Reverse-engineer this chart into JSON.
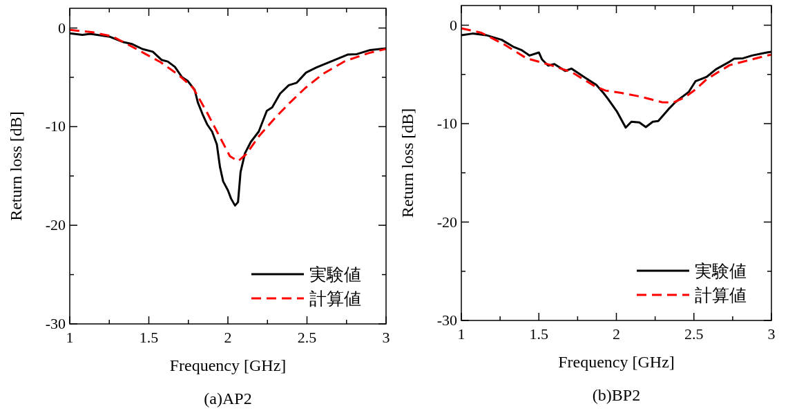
{
  "chart_data": [
    {
      "type": "line",
      "title": "(a)AP2",
      "xlabel": "Frequency [GHz]",
      "ylabel": "Return loss [dB]",
      "xlim": [
        1,
        3
      ],
      "ylim": [
        -30,
        2
      ],
      "xticks": [
        1,
        {
          "value": 1.25,
          "label": null
        },
        1.5,
        {
          "value": 1.75,
          "label": null
        },
        2,
        {
          "value": 2.25,
          "label": null
        },
        2.5,
        {
          "value": 2.75,
          "label": null
        },
        3
      ],
      "yticks": [
        -30,
        {
          "value": -25,
          "label": null
        },
        -20,
        {
          "value": -15,
          "label": null
        },
        -10,
        {
          "value": -5,
          "label": null
        },
        0
      ],
      "grid": false,
      "legend": "bottom right",
      "series": [
        {
          "name": "実験値",
          "color": "#000000",
          "line_style": "solid",
          "x": [
            1.0,
            1.08,
            1.13,
            1.255,
            1.34,
            1.39,
            1.46,
            1.525,
            1.58,
            1.62,
            1.665,
            1.71,
            1.745,
            1.79,
            1.81,
            1.84,
            1.87,
            1.9,
            1.93,
            1.95,
            1.97,
            2.0,
            2.02,
            2.045,
            2.064,
            2.08,
            2.108,
            2.145,
            2.195,
            2.246,
            2.28,
            2.33,
            2.385,
            2.435,
            2.494,
            2.56,
            2.64,
            2.757,
            2.815,
            2.9,
            3.0
          ],
          "values": [
            -0.54,
            -0.7,
            -0.59,
            -0.89,
            -1.43,
            -1.6,
            -2.13,
            -2.4,
            -3.23,
            -3.4,
            -3.94,
            -4.99,
            -5.35,
            -6.28,
            -7.55,
            -8.75,
            -9.8,
            -10.5,
            -11.8,
            -14.1,
            -15.55,
            -16.45,
            -17.3,
            -18.0,
            -17.65,
            -14.6,
            -12.7,
            -11.55,
            -10.5,
            -8.4,
            -8.05,
            -6.65,
            -5.8,
            -5.55,
            -4.52,
            -4.0,
            -3.47,
            -2.7,
            -2.65,
            -2.23,
            -2.06
          ]
        },
        {
          "name": "計算値",
          "color": "#ff0000",
          "line_style": "dashed",
          "x": [
            1.0,
            1.14,
            1.27,
            1.415,
            1.576,
            1.69,
            1.78,
            1.867,
            1.94,
            2.013,
            2.064,
            2.115,
            2.2,
            2.305,
            2.39,
            2.49,
            2.6,
            2.74,
            2.89,
            3.0
          ],
          "values": [
            -0.19,
            -0.42,
            -0.85,
            -2.07,
            -3.48,
            -4.78,
            -6.07,
            -8.54,
            -10.78,
            -13.0,
            -13.5,
            -12.8,
            -10.9,
            -9.0,
            -7.6,
            -6.07,
            -4.66,
            -3.36,
            -2.54,
            -2.12
          ]
        }
      ]
    },
    {
      "type": "line",
      "title": "(b)BP2",
      "xlabel": "Frequency [GHz]",
      "ylabel": "Return loss [dB]",
      "xlim": [
        1,
        3
      ],
      "ylim": [
        -30,
        2
      ],
      "xticks": [
        1,
        {
          "value": 1.25,
          "label": null
        },
        1.5,
        {
          "value": 1.75,
          "label": null
        },
        2,
        {
          "value": 2.25,
          "label": null
        },
        2.5,
        {
          "value": 2.75,
          "label": null
        },
        3
      ],
      "yticks": [
        -30,
        {
          "value": -25,
          "label": null
        },
        -20,
        {
          "value": -15,
          "label": null
        },
        -10,
        {
          "value": -5,
          "label": null
        },
        0
      ],
      "grid": false,
      "legend": "bottom right",
      "series": [
        {
          "name": "実験値",
          "color": "#000000",
          "line_style": "solid",
          "x": [
            1.0,
            1.073,
            1.16,
            1.26,
            1.334,
            1.39,
            1.44,
            1.5,
            1.52,
            1.56,
            1.6,
            1.67,
            1.71,
            1.8,
            1.87,
            1.916,
            1.945,
            2.003,
            2.06,
            2.097,
            2.148,
            2.19,
            2.235,
            2.27,
            2.337,
            2.38,
            2.468,
            2.51,
            2.584,
            2.642,
            2.73,
            2.76,
            2.817,
            2.875,
            2.97,
            3.0
          ],
          "values": [
            -1.01,
            -0.85,
            -1.01,
            -1.48,
            -2.18,
            -2.54,
            -3.08,
            -2.77,
            -3.47,
            -4.11,
            -3.94,
            -4.65,
            -4.41,
            -5.35,
            -6.06,
            -6.88,
            -7.46,
            -8.76,
            -10.4,
            -9.81,
            -9.88,
            -10.35,
            -9.81,
            -9.74,
            -8.52,
            -7.82,
            -6.76,
            -5.7,
            -5.23,
            -4.48,
            -3.71,
            -3.4,
            -3.36,
            -3.08,
            -2.77,
            -2.7
          ]
        },
        {
          "name": "計算値",
          "color": "#ff0000",
          "line_style": "dashed",
          "x": [
            1.0,
            1.13,
            1.276,
            1.42,
            1.567,
            1.712,
            1.858,
            1.93,
            2.032,
            2.148,
            2.294,
            2.366,
            2.44,
            2.51,
            2.584,
            2.73,
            2.875,
            2.97,
            3.0
          ],
          "values": [
            -0.31,
            -0.77,
            -1.95,
            -3.36,
            -4.01,
            -4.77,
            -6.17,
            -6.64,
            -6.88,
            -7.23,
            -7.82,
            -7.86,
            -7.35,
            -6.53,
            -5.47,
            -4.06,
            -3.47,
            -3.08,
            -3.0
          ]
        }
      ]
    }
  ]
}
